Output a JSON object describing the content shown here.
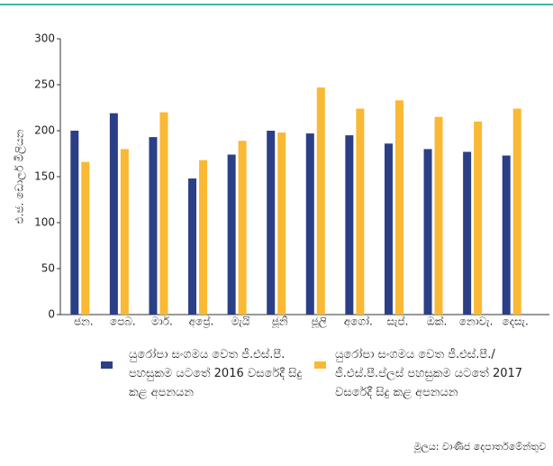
{
  "chart_data": {
    "type": "bar",
    "y_label": "එ.ජ. ඩොලර් මිලියන",
    "categories": [
      "ජන.",
      "පෙබ.",
      "මාර්.",
      "අප්‍රේ.",
      "මැයි",
      "ජූනි",
      "ජූලි",
      "අගෝ.",
      "සැප්.",
      "ඔක්.",
      "නොවැ.",
      "දෙසැ."
    ],
    "series": [
      {
        "name": "යුරෝපා සංගමය වෙත ජී.එස්.පී. පහසුකම යටතේ 2016 වසරේදී සිදු කළ අපනයන",
        "color": "#2b3f87",
        "values": [
          200,
          219,
          193,
          148,
          174,
          200,
          197,
          195,
          186,
          180,
          177,
          173
        ]
      },
      {
        "name": "යුරෝපා සංගමය වෙත ජී.එස්.පී./ජී.එස්.පී.ප්ලස් පහසුකම යටතේ 2017 වසරේදී සිදු කළ අපනයන",
        "color": "#f9b934",
        "values": [
          166,
          180,
          220,
          168,
          189,
          198,
          247,
          224,
          233,
          215,
          210,
          224
        ]
      }
    ],
    "ylim": [
      0,
      300
    ],
    "yticks": [
      0,
      50,
      100,
      150,
      200,
      250,
      300
    ],
    "source": "මූලය: වාණිජ දෙපාර්තමේන්තුව"
  }
}
